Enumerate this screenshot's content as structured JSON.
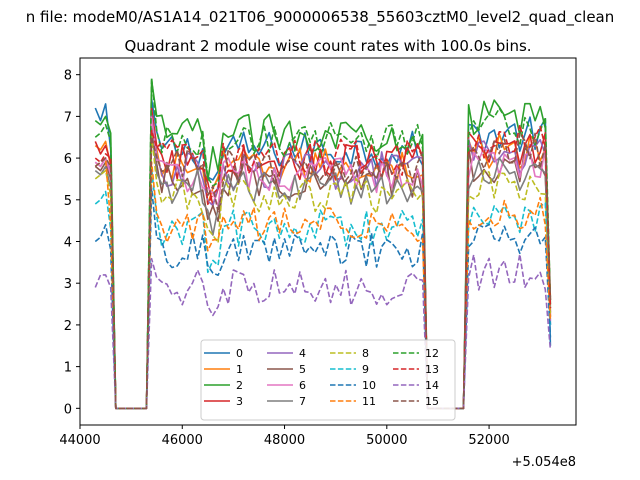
{
  "chart_data": {
    "type": "line",
    "suptitle": "n file: modeM0/AS1A14_021T06_9000006538_55603cztM0_level2_quad_clean",
    "title": "Quadrant 2 module wise count rates with 100.0s bins.",
    "xlabel": "",
    "ylabel": "",
    "x_offset_label": "+5.054e8",
    "xlim": [
      44000,
      53700
    ],
    "ylim": [
      -0.4,
      8.4
    ],
    "xticks": [
      44000,
      46000,
      48000,
      50000,
      52000
    ],
    "xtick_labels": [
      "44000",
      "46000",
      "48000",
      "50000",
      "52000"
    ],
    "yticks": [
      0,
      1,
      2,
      3,
      4,
      5,
      6,
      7,
      8
    ],
    "ytick_labels": [
      "0",
      "1",
      "2",
      "3",
      "4",
      "5",
      "6",
      "7",
      "8"
    ],
    "legend_location": "lower-center",
    "x_start": 44300,
    "x_step": 100,
    "segments": [
      {
        "start": 44300,
        "end": 44600,
        "state": "on"
      },
      {
        "start": 44700,
        "end": 45300,
        "state": "off"
      },
      {
        "start": 45400,
        "end": 50700,
        "state": "on"
      },
      {
        "start": 50800,
        "end": 51500,
        "state": "off"
      },
      {
        "start": 51600,
        "end": 53200,
        "state": "on"
      }
    ],
    "series": [
      {
        "name": "0",
        "color": "#1f77b4",
        "dash": "solid",
        "level": 6.2,
        "start_values": [
          7.2,
          6.9,
          7.3
        ],
        "end_value": 1.5
      },
      {
        "name": "1",
        "color": "#ff7f0e",
        "dash": "solid",
        "level": 5.8,
        "start_values": [
          6.3,
          6.2,
          6.4
        ],
        "end_value": 2.6
      },
      {
        "name": "2",
        "color": "#2ca02c",
        "dash": "solid",
        "level": 6.6,
        "start_values": [
          6.9,
          6.8,
          7.0
        ],
        "end_value": 2.5
      },
      {
        "name": "3",
        "color": "#d62728",
        "dash": "solid",
        "level": 5.9,
        "start_values": [
          6.4,
          6.1,
          6.3
        ],
        "end_value": 2.2
      },
      {
        "name": "4",
        "color": "#9467bd",
        "dash": "solid",
        "level": 5.7,
        "start_values": [
          5.9,
          5.8,
          6.0
        ],
        "end_value": 2.0
      },
      {
        "name": "5",
        "color": "#8c564b",
        "dash": "solid",
        "level": 5.5,
        "start_values": [
          5.8,
          5.7,
          5.9
        ],
        "end_value": 2.3
      },
      {
        "name": "6",
        "color": "#e377c2",
        "dash": "solid",
        "level": 5.6,
        "start_values": [
          5.9,
          5.8,
          6.0
        ],
        "end_value": 2.1
      },
      {
        "name": "7",
        "color": "#7f7f7f",
        "dash": "solid",
        "level": 5.3,
        "start_values": [
          5.7,
          5.6,
          5.8
        ],
        "end_value": 2.4
      },
      {
        "name": "8",
        "color": "#bcbd22",
        "dash": "dashed",
        "level": 5.1,
        "start_values": [
          5.5,
          5.6,
          5.7
        ],
        "end_value": 2.2
      },
      {
        "name": "9",
        "color": "#17becf",
        "dash": "dashed",
        "level": 4.3,
        "start_values": [
          4.9,
          5.0,
          5.2
        ],
        "end_value": 2.0
      },
      {
        "name": "10",
        "color": "#1f77b4",
        "dash": "dashed",
        "level": 3.8,
        "start_values": [
          4.0,
          4.1,
          4.4
        ],
        "end_value": 1.7
      },
      {
        "name": "11",
        "color": "#ff7f0e",
        "dash": "dashed",
        "level": 4.4,
        "start_values": [
          5.8,
          5.9,
          6.0
        ],
        "end_value": 2.1
      },
      {
        "name": "12",
        "color": "#2ca02c",
        "dash": "dashed",
        "level": 6.4,
        "start_values": [
          6.5,
          6.6,
          6.8
        ],
        "end_value": 2.6
      },
      {
        "name": "13",
        "color": "#d62728",
        "dash": "dashed",
        "level": 6.0,
        "start_values": [
          6.0,
          5.9,
          6.1
        ],
        "end_value": 2.4
      },
      {
        "name": "14",
        "color": "#9467bd",
        "dash": "dashed",
        "level": 2.9,
        "start_values": [
          2.9,
          3.2,
          3.2
        ],
        "end_value": 1.4
      },
      {
        "name": "15",
        "color": "#8c564b",
        "dash": "dashed",
        "level": 5.8,
        "start_values": [
          5.8,
          5.9,
          6.0
        ],
        "end_value": 2.6
      }
    ]
  }
}
